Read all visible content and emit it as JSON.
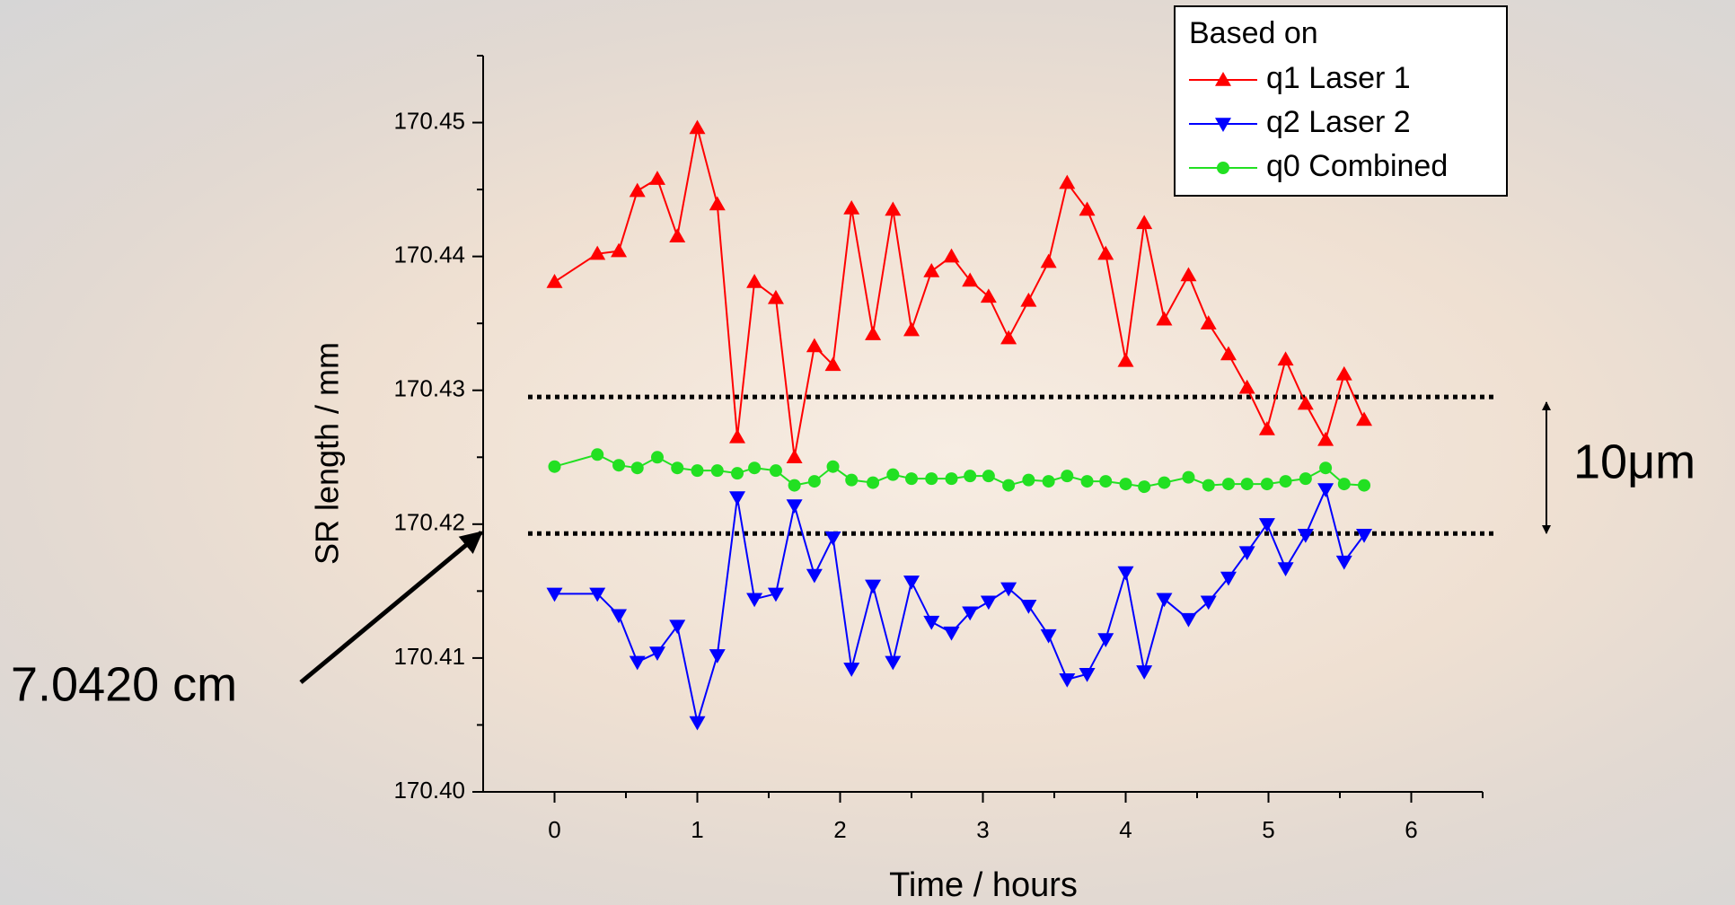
{
  "chart_data": {
    "type": "line",
    "x_label": "Time / hours",
    "y_label": "SR length / mm",
    "legend_title": "Based on",
    "legend_position": "top-right",
    "x": [
      0,
      0.3,
      0.45,
      0.58,
      0.72,
      0.86,
      1.0,
      1.14,
      1.28,
      1.4,
      1.55,
      1.68,
      1.82,
      1.95,
      2.08,
      2.23,
      2.37,
      2.5,
      2.64,
      2.78,
      2.91,
      3.04,
      3.18,
      3.32,
      3.46,
      3.59,
      3.73,
      3.86,
      4.0,
      4.13,
      4.27,
      4.44,
      4.58,
      4.72,
      4.85,
      4.99,
      5.12,
      5.26,
      5.4,
      5.53,
      5.67
    ],
    "series": [
      {
        "name": "q1 Laser 1",
        "color": "#ff0000",
        "marker": "triangle-up",
        "values": [
          170.4381,
          170.4402,
          170.4404,
          170.4449,
          170.4458,
          170.4415,
          170.4496,
          170.4439,
          170.4265,
          170.4381,
          170.4369,
          170.425,
          170.4333,
          170.4319,
          170.4436,
          170.4342,
          170.4435,
          170.4345,
          170.4389,
          170.44,
          170.4382,
          170.437,
          170.4339,
          170.4367,
          170.4396,
          170.4455,
          170.4435,
          170.4402,
          170.4322,
          170.4425,
          170.4353,
          170.4386,
          170.435,
          170.4327,
          170.4302,
          170.4271,
          170.4323,
          170.429,
          170.4263,
          170.4312,
          170.4278
        ]
      },
      {
        "name": "q2 Laser 2",
        "color": "#0000ff",
        "marker": "triangle-down",
        "values": [
          170.4148,
          170.4148,
          170.4132,
          170.4097,
          170.4104,
          170.4124,
          170.4052,
          170.4102,
          170.422,
          170.4144,
          170.4148,
          170.4214,
          170.4162,
          170.419,
          170.4092,
          170.4154,
          170.4097,
          170.4157,
          170.4127,
          170.4119,
          170.4134,
          170.4142,
          170.4152,
          170.4139,
          170.4117,
          170.4084,
          170.4088,
          170.4114,
          170.4164,
          170.409,
          170.4144,
          170.4129,
          170.4142,
          170.416,
          170.4179,
          170.42,
          170.4167,
          170.4192,
          170.4226,
          170.4172,
          170.4192
        ]
      },
      {
        "name": "q0 Combined",
        "color": "#22e022",
        "marker": "circle",
        "values": [
          170.4243,
          170.4252,
          170.4244,
          170.4242,
          170.425,
          170.4242,
          170.424,
          170.424,
          170.4238,
          170.4242,
          170.424,
          170.4229,
          170.4232,
          170.4243,
          170.4233,
          170.4231,
          170.4237,
          170.4234,
          170.4234,
          170.4234,
          170.4236,
          170.4236,
          170.4229,
          170.4233,
          170.4232,
          170.4236,
          170.4232,
          170.4232,
          170.423,
          170.4228,
          170.4231,
          170.4235,
          170.4229,
          170.423,
          170.423,
          170.423,
          170.4232,
          170.4234,
          170.4242,
          170.423,
          170.4229
        ]
      }
    ],
    "xlim": [
      -0.5,
      6.5
    ],
    "xticks": [
      0,
      1,
      2,
      3,
      4,
      5,
      6
    ],
    "x_minor_ticks": [
      0.5,
      1.5,
      2.5,
      3.5,
      4.5,
      5.5,
      6.5
    ],
    "ylim": [
      170.4,
      170.455
    ],
    "yticks": [
      {
        "value": 170.4,
        "label": "170.40"
      },
      170.41,
      170.42,
      170.43,
      170.44,
      170.45
    ],
    "y_minor_ticks": [
      170.405,
      170.415,
      170.425,
      170.435,
      170.445,
      170.455
    ],
    "reference_lines": [
      170.4295,
      170.4193
    ],
    "annotations": [
      "10μm",
      "7.0420 cm"
    ]
  }
}
